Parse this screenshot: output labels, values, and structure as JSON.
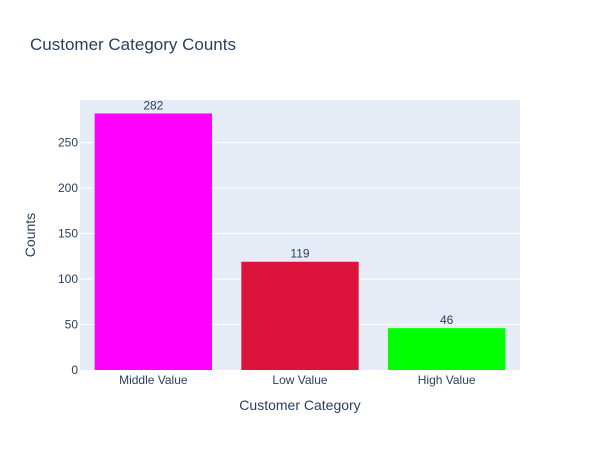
{
  "chart_data": {
    "type": "bar",
    "title": "Customer Category Counts",
    "xlabel": "Customer Category",
    "ylabel": "Counts",
    "categories": [
      "Middle Value",
      "Low Value",
      "High Value"
    ],
    "values": [
      282,
      119,
      46
    ],
    "colors": [
      "#ff00ff",
      "#dc143c",
      "#00ff00"
    ],
    "ylim": [
      0,
      296.8
    ],
    "yticks": [
      0,
      50,
      100,
      150,
      200,
      250
    ],
    "ytick_labels": [
      "0",
      "50",
      "100",
      "150",
      "200",
      "250"
    ],
    "data_labels": [
      "282",
      "119",
      "46"
    ],
    "grid": true,
    "legend": "none",
    "plot_bgcolor": "#e5ecf6"
  }
}
